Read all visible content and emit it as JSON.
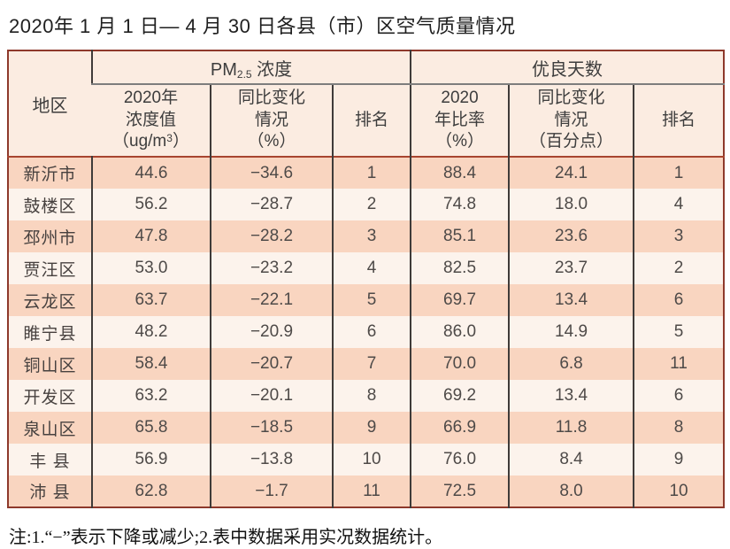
{
  "title": "2020年 1 月 1 日— 4 月 30 日各县（市）区空气质量情况",
  "note": "注:1.“−”表示下降或减少;2.表中数据采用实况数据统计。",
  "colors": {
    "outer_border": "#8e392b",
    "inner_vertical_line": "#3f3b39",
    "header_separator": "#a8452f",
    "header_bg": "#fbece1",
    "row_pink": "#f9d5c0",
    "row_light": "#fcf3ec",
    "text": "#4e4a48"
  },
  "table": {
    "region_header": "地区",
    "group_pm": {
      "prefix": "PM",
      "sub": "2.5",
      "suffix": " 浓度"
    },
    "group_days": "优良天数",
    "sub_headers": {
      "conc": {
        "l1": "2020年",
        "l2": "浓度值",
        "l3a": "（ug/m",
        "l3sup": "3",
        "l3b": "）"
      },
      "pm_change": {
        "l1": "同比变化",
        "l2": "情况",
        "l3": "（%）"
      },
      "pm_rank": "排名",
      "ratio": {
        "l1": "2020",
        "l2": "年比率",
        "l3": "（%）"
      },
      "days_change": {
        "l1": "同比变化",
        "l2": "情况",
        "l3": "（百分点）"
      },
      "days_rank": "排名"
    },
    "rows": [
      {
        "region": "新沂市",
        "pm_value": "44.6",
        "pm_change": "−34.6",
        "pm_rank": "1",
        "days_ratio": "88.4",
        "days_change": "24.1",
        "days_rank": "1"
      },
      {
        "region": "鼓楼区",
        "pm_value": "56.2",
        "pm_change": "−28.7",
        "pm_rank": "2",
        "days_ratio": "74.8",
        "days_change": "18.0",
        "days_rank": "4"
      },
      {
        "region": "邳州市",
        "pm_value": "47.8",
        "pm_change": "−28.2",
        "pm_rank": "3",
        "days_ratio": "85.1",
        "days_change": "23.6",
        "days_rank": "3"
      },
      {
        "region": "贾汪区",
        "pm_value": "53.0",
        "pm_change": "−23.2",
        "pm_rank": "4",
        "days_ratio": "82.5",
        "days_change": "23.7",
        "days_rank": "2"
      },
      {
        "region": "云龙区",
        "pm_value": "63.7",
        "pm_change": "−22.1",
        "pm_rank": "5",
        "days_ratio": "69.7",
        "days_change": "13.4",
        "days_rank": "6"
      },
      {
        "region": "睢宁县",
        "pm_value": "48.2",
        "pm_change": "−20.9",
        "pm_rank": "6",
        "days_ratio": "86.0",
        "days_change": "14.9",
        "days_rank": "5"
      },
      {
        "region": "铜山区",
        "pm_value": "58.4",
        "pm_change": "−20.7",
        "pm_rank": "7",
        "days_ratio": "70.0",
        "days_change": "6.8",
        "days_rank": "11"
      },
      {
        "region": "开发区",
        "pm_value": "63.2",
        "pm_change": "−20.1",
        "pm_rank": "8",
        "days_ratio": "69.2",
        "days_change": "13.4",
        "days_rank": "6"
      },
      {
        "region": "泉山区",
        "pm_value": "65.8",
        "pm_change": "−18.5",
        "pm_rank": "9",
        "days_ratio": "66.9",
        "days_change": "11.8",
        "days_rank": "8"
      },
      {
        "region": "丰 县",
        "pm_value": "56.9",
        "pm_change": "−13.8",
        "pm_rank": "10",
        "days_ratio": "76.0",
        "days_change": "8.4",
        "days_rank": "9"
      },
      {
        "region": "沛 县",
        "pm_value": "62.8",
        "pm_change": "−1.7",
        "pm_rank": "11",
        "days_ratio": "72.5",
        "days_change": "8.0",
        "days_rank": "10"
      }
    ]
  }
}
